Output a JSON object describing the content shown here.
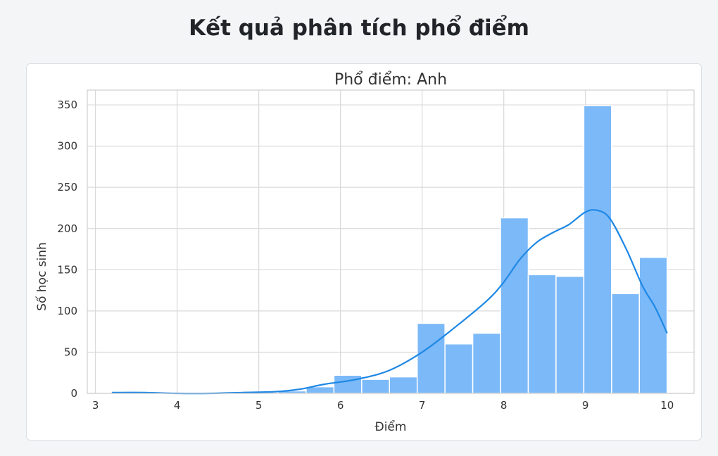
{
  "page": {
    "title": "Kết quả phân tích phổ điểm"
  },
  "chart_data": {
    "type": "bar",
    "title": "Phổ điểm: Anh",
    "xlabel": "Điểm",
    "ylabel": "Số học sinh",
    "xlim": [
      2.9,
      10.33
    ],
    "ylim": [
      0,
      368
    ],
    "xticks": [
      3,
      4,
      5,
      6,
      7,
      8,
      9,
      10
    ],
    "yticks": [
      0,
      50,
      100,
      150,
      200,
      250,
      300,
      350
    ],
    "grid": true,
    "bar_color": "#7cb9f8",
    "line_color": "#1e88e5",
    "bins": [
      {
        "x0": 3.2,
        "x1": 3.54,
        "count": 1
      },
      {
        "x0": 3.54,
        "x1": 3.88,
        "count": 0
      },
      {
        "x0": 3.88,
        "x1": 4.22,
        "count": 0
      },
      {
        "x0": 4.22,
        "x1": 4.56,
        "count": 0
      },
      {
        "x0": 4.56,
        "x1": 4.9,
        "count": 0
      },
      {
        "x0": 4.9,
        "x1": 5.24,
        "count": 1
      },
      {
        "x0": 5.24,
        "x1": 5.58,
        "count": 3
      },
      {
        "x0": 5.58,
        "x1": 5.92,
        "count": 8
      },
      {
        "x0": 5.92,
        "x1": 6.26,
        "count": 22
      },
      {
        "x0": 6.26,
        "x1": 6.6,
        "count": 17
      },
      {
        "x0": 6.6,
        "x1": 6.94,
        "count": 20
      },
      {
        "x0": 6.94,
        "x1": 7.28,
        "count": 85
      },
      {
        "x0": 7.28,
        "x1": 7.62,
        "count": 60
      },
      {
        "x0": 7.62,
        "x1": 7.96,
        "count": 73
      },
      {
        "x0": 7.96,
        "x1": 8.3,
        "count": 213
      },
      {
        "x0": 8.3,
        "x1": 8.64,
        "count": 144
      },
      {
        "x0": 8.64,
        "x1": 8.98,
        "count": 142
      },
      {
        "x0": 8.98,
        "x1": 9.32,
        "count": 349
      },
      {
        "x0": 9.32,
        "x1": 9.66,
        "count": 121
      },
      {
        "x0": 9.66,
        "x1": 10.0,
        "count": 165
      }
    ],
    "kde": {
      "x": [
        3.2,
        3.6,
        4.0,
        4.4,
        4.8,
        5.2,
        5.5,
        5.8,
        6.2,
        6.6,
        7.0,
        7.4,
        7.8,
        8.0,
        8.2,
        8.4,
        8.6,
        8.8,
        9.0,
        9.15,
        9.3,
        9.5,
        9.7,
        9.85,
        10.0
      ],
      "y": [
        1,
        1,
        0,
        0,
        1,
        2,
        5,
        11,
        17,
        28,
        50,
        80,
        113,
        135,
        163,
        183,
        195,
        205,
        220,
        222,
        212,
        175,
        130,
        105,
        73
      ]
    }
  }
}
